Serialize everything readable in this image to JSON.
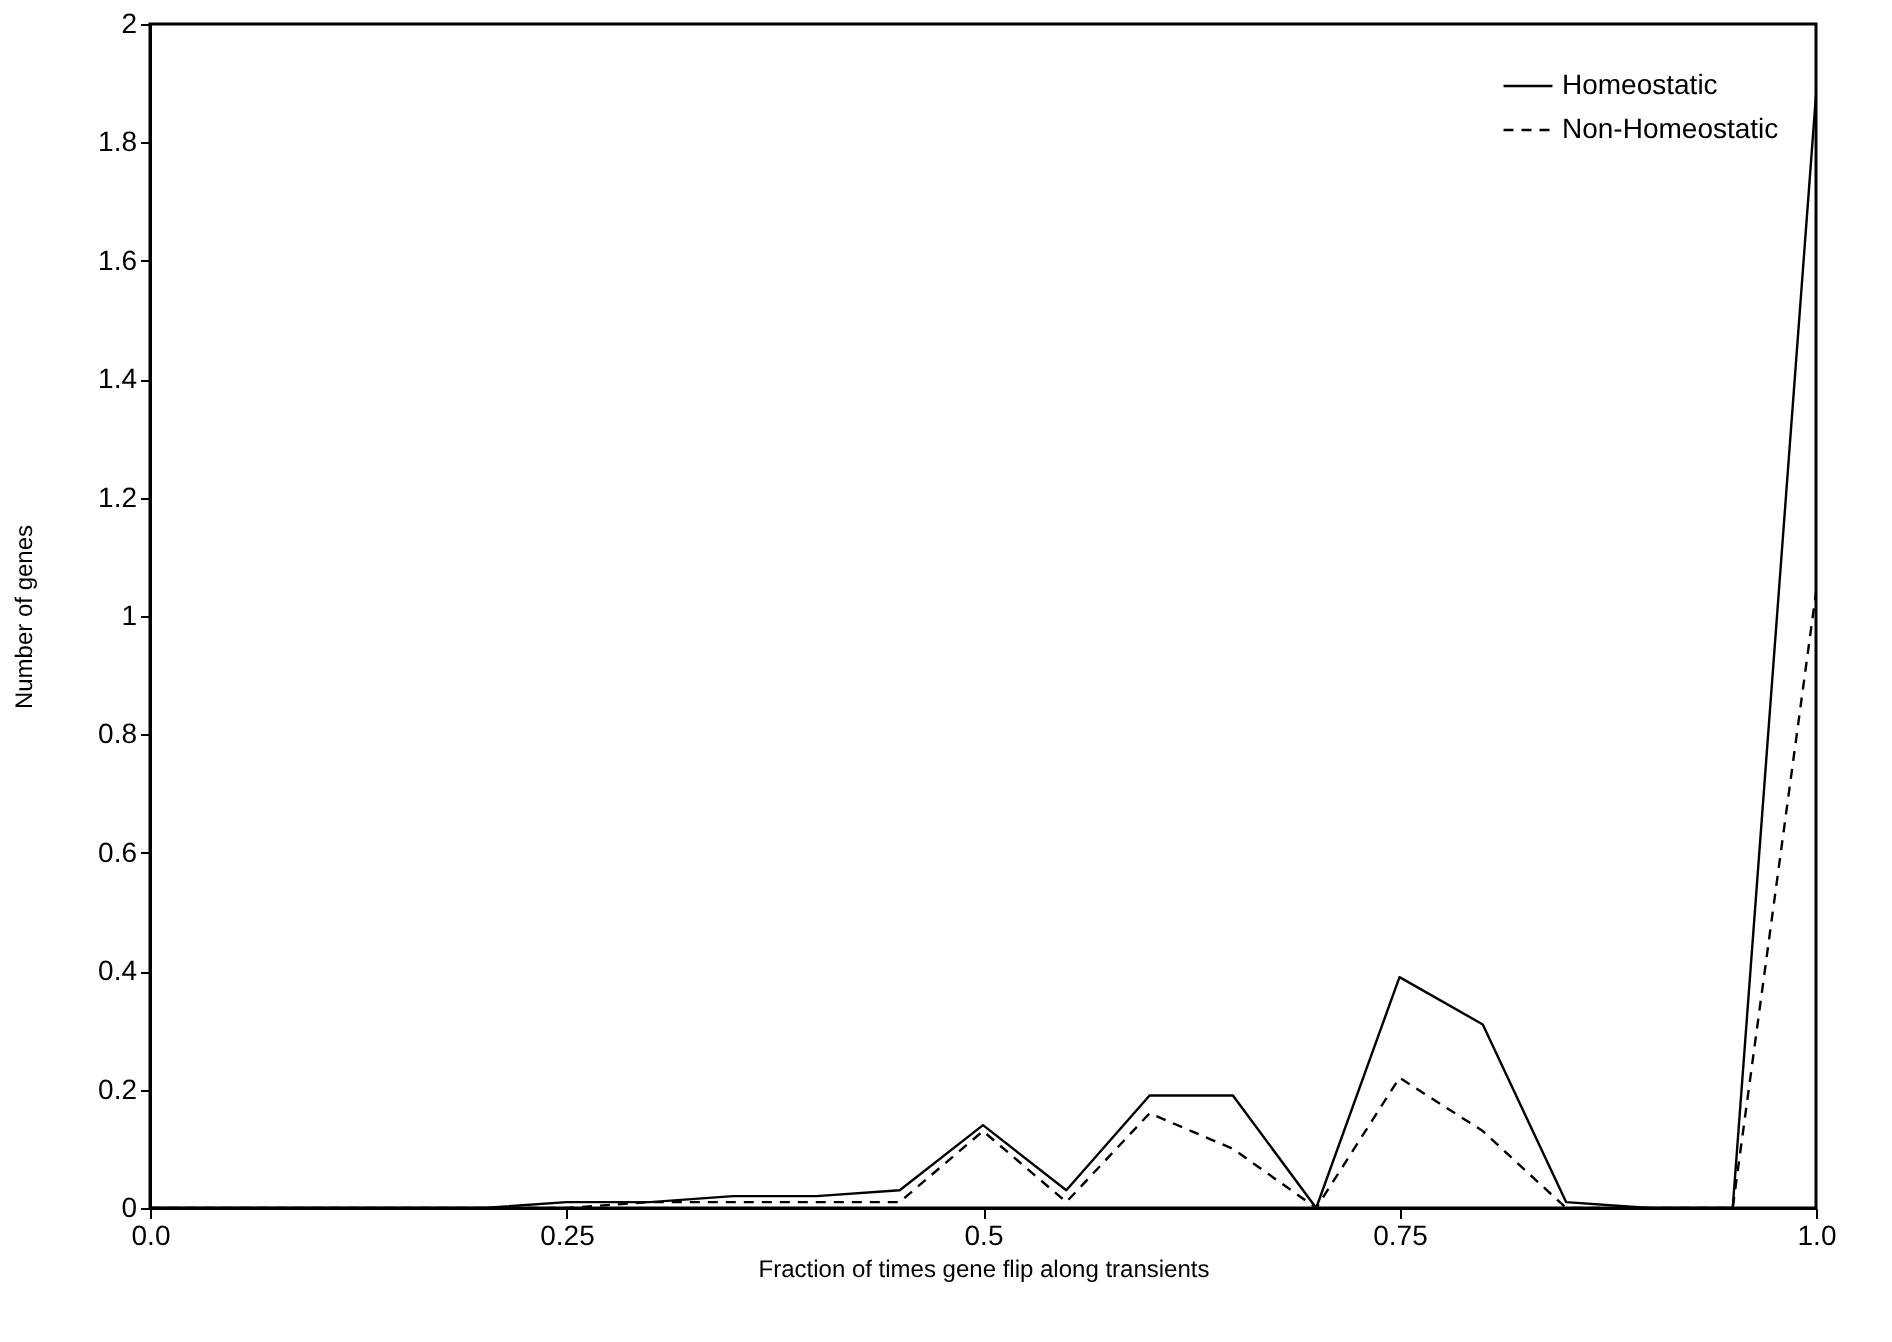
{
  "chart_data": {
    "type": "line",
    "xlabel": "Fraction of times gene flip along transients",
    "ylabel": "Number of genes",
    "x": [
      0,
      0.05,
      0.1,
      0.15,
      0.2,
      0.25,
      0.3,
      0.35,
      0.4,
      0.45,
      0.5,
      0.55,
      0.6,
      0.65,
      0.7,
      0.75,
      0.8,
      0.85,
      0.9,
      0.95,
      1.0
    ],
    "series": [
      {
        "name": "Homeostatic",
        "color": "#000000",
        "line_style": "solid",
        "values": [
          0,
          0,
          0,
          0,
          0,
          0.01,
          0.01,
          0.02,
          0.02,
          0.03,
          0.14,
          0.03,
          0.19,
          0.19,
          0,
          0.39,
          0.31,
          0.01,
          0,
          0,
          1.88
        ]
      },
      {
        "name": "Non-Homeostatic",
        "color": "#000000",
        "line_style": "dashed",
        "values": [
          0,
          0,
          0,
          0,
          0,
          0,
          0.01,
          0.01,
          0.01,
          0.01,
          0.13,
          0.01,
          0.16,
          0.1,
          0,
          0.22,
          0.13,
          0,
          0,
          0,
          1.04
        ]
      }
    ],
    "xlim": [
      0,
      1
    ],
    "xticks": [
      {
        "value": 0,
        "label": "0.0"
      },
      0.25,
      0.5,
      0.75,
      {
        "value": 1,
        "label": "1.0"
      }
    ],
    "ylim": [
      0,
      2
    ],
    "yticks": [
      0,
      0.2,
      0.4,
      0.6,
      0.8,
      1,
      1.2,
      1.4,
      1.6,
      1.8,
      2
    ],
    "grid": false,
    "legend": "top right",
    "marker": "none"
  }
}
